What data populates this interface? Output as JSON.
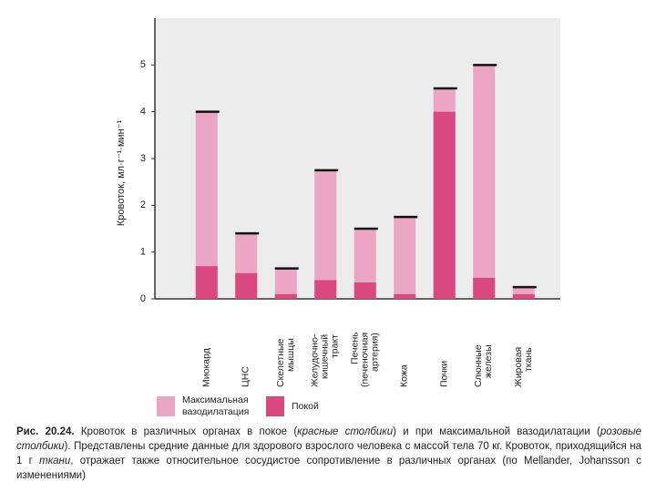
{
  "chart_data": {
    "type": "bar",
    "y_label": "Кровоток, мл·г⁻¹·мин⁻¹",
    "categories": [
      "Миокард",
      "ЦНС",
      "Скелетные\nмышцы",
      "Желудочно-\nкишечный\nтракт",
      "Печень\n(печеночная\nартерия)",
      "Кожа",
      "Почки",
      "Слюнные\nжелезы",
      "Жировая\nткань"
    ],
    "series": [
      {
        "name": "Максимальная\nвазодилатация",
        "color": "#eba6c4",
        "values": [
          4.0,
          1.4,
          0.65,
          2.75,
          1.5,
          1.75,
          4.5,
          5.0,
          0.25
        ]
      },
      {
        "name": "Покой",
        "color": "#d9487f",
        "values": [
          0.7,
          0.55,
          0.1,
          0.4,
          0.35,
          0.1,
          4.0,
          0.45,
          0.1
        ]
      }
    ],
    "ylim": [
      0,
      6
    ],
    "yticks": [
      0,
      1,
      2,
      3,
      4,
      5
    ]
  },
  "caption": [
    "Рис. 20.24.",
    "Кровоток в различных органах в покое (",
    "красные столбики",
    ") и при максимальной вазодилатации (",
    "розовые столбики",
    "). Представлены средние данные для здорового взрослого человека с массой тела 70 кг. Кровоток, приходящийся на 1 г ",
    "ткани",
    ", отражает также относительное сосудистое сопротивление в различных органах (по Mellander, Johansson с изменениями)"
  ]
}
